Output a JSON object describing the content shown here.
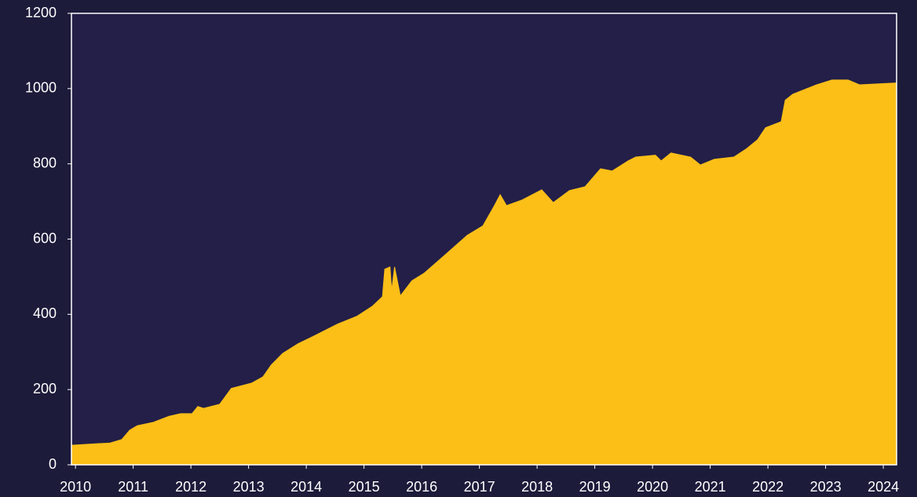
{
  "chart_data": {
    "type": "area",
    "x": [
      2009.93,
      2010.6,
      2010.8,
      2010.94,
      2011.07,
      2011.35,
      2011.62,
      2011.82,
      2012.02,
      2012.12,
      2012.22,
      2012.5,
      2012.7,
      2013.05,
      2013.25,
      2013.39,
      2013.59,
      2013.86,
      2014.13,
      2014.54,
      2014.88,
      2015.15,
      2015.32,
      2015.36,
      2015.45,
      2015.48,
      2015.53,
      2015.63,
      2015.83,
      2016.04,
      2016.45,
      2016.79,
      2017.06,
      2017.26,
      2017.36,
      2017.47,
      2017.74,
      2018.08,
      2018.28,
      2018.56,
      2018.83,
      2019.1,
      2019.3,
      2019.58,
      2019.71,
      2020.05,
      2020.15,
      2020.32,
      2020.66,
      2020.83,
      2021.07,
      2021.41,
      2021.62,
      2021.82,
      2021.96,
      2022.23,
      2022.3,
      2022.43,
      2022.84,
      2023.11,
      2023.39,
      2023.59,
      2024.23
    ],
    "values": [
      52,
      58,
      67,
      92,
      104,
      113,
      129,
      136,
      136,
      155,
      150,
      161,
      203,
      217,
      234,
      265,
      296,
      322,
      342,
      374,
      395,
      422,
      447,
      520,
      526,
      463,
      526,
      449,
      489,
      509,
      564,
      610,
      635,
      689,
      718,
      689,
      704,
      731,
      697,
      729,
      739,
      787,
      781,
      808,
      818,
      823,
      808,
      829,
      818,
      797,
      812,
      818,
      839,
      864,
      896,
      912,
      969,
      985,
      1010,
      1023,
      1023,
      1010,
      1015
    ],
    "color": "#fbbf18",
    "xlim": [
      2009.93,
      2024.23
    ],
    "xticks": [
      2010,
      2011,
      2012,
      2013,
      2014,
      2015,
      2016,
      2017,
      2018,
      2019,
      2020,
      2021,
      2022,
      2023,
      2024
    ],
    "ylim": [
      0,
      1200
    ],
    "yticks": [
      0,
      200,
      400,
      600,
      800,
      1000,
      1200
    ]
  }
}
